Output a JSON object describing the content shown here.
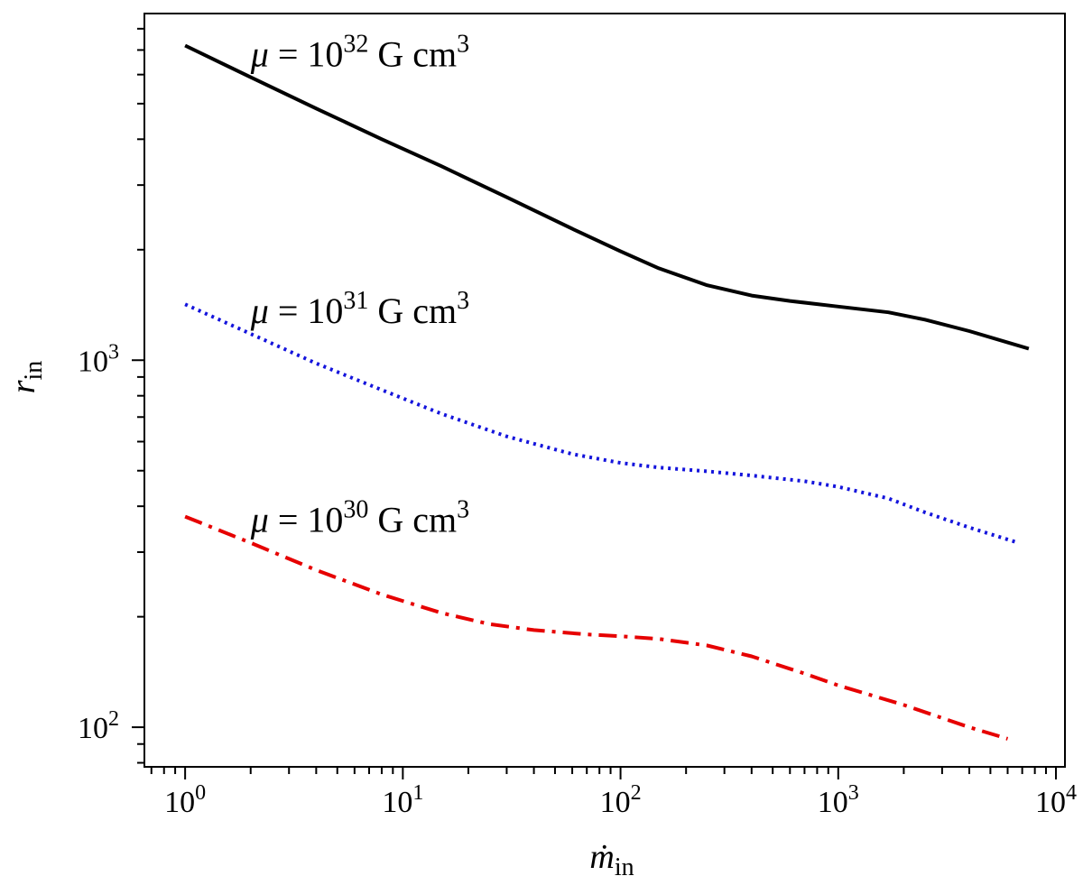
{
  "chart_data": {
    "type": "line",
    "x_scale": "log",
    "y_scale": "log",
    "xlim": [
      0.65,
      11000
    ],
    "ylim": [
      78,
      8800
    ],
    "xlabel": {
      "base": "ṁ",
      "sub": "in"
    },
    "ylabel": {
      "base": "r",
      "sub": "in"
    },
    "x_ticks": [
      {
        "value": 1,
        "base": "10",
        "exp": "0"
      },
      {
        "value": 10,
        "base": "10",
        "exp": "1"
      },
      {
        "value": 100,
        "base": "10",
        "exp": "2"
      },
      {
        "value": 1000,
        "base": "10",
        "exp": "3"
      },
      {
        "value": 10000,
        "base": "10",
        "exp": "4"
      }
    ],
    "y_ticks": [
      {
        "value": 100,
        "base": "10",
        "exp": "2"
      },
      {
        "value": 1000,
        "base": "10",
        "exp": "3"
      }
    ],
    "series": [
      {
        "name": "mu32",
        "label": {
          "prefix": "μ = 10",
          "exp": "32",
          "unit": " G cm",
          "unit_exp": "3",
          "anchor_x": 2.0
        },
        "color": "#000000",
        "style": "solid",
        "x": [
          1,
          2,
          4,
          8,
          15,
          30,
          60,
          100,
          150,
          250,
          400,
          600,
          1000,
          1700,
          2500,
          4000,
          7500
        ],
        "y": [
          7200,
          5900,
          4850,
          4000,
          3380,
          2780,
          2280,
          1980,
          1780,
          1600,
          1500,
          1450,
          1400,
          1350,
          1290,
          1200,
          1075
        ]
      },
      {
        "name": "mu31",
        "label": {
          "prefix": "μ = 10",
          "exp": "31",
          "unit": " G cm",
          "unit_exp": "3",
          "anchor_x": 2.0
        },
        "color": "#1414dc",
        "style": "dotted",
        "x": [
          1,
          2,
          4,
          8,
          15,
          30,
          60,
          100,
          150,
          250,
          400,
          700,
          1000,
          1700,
          2500,
          4000,
          6500
        ],
        "y": [
          1420,
          1180,
          980,
          830,
          715,
          620,
          555,
          525,
          510,
          498,
          485,
          468,
          452,
          420,
          385,
          350,
          320
        ]
      },
      {
        "name": "mu30",
        "label": {
          "prefix": "μ = 10",
          "exp": "30",
          "unit": " G cm",
          "unit_exp": "3",
          "anchor_x": 2.0
        },
        "color": "#e60000",
        "style": "dashdot",
        "x": [
          1,
          2,
          4,
          8,
          15,
          25,
          40,
          70,
          100,
          150,
          250,
          400,
          700,
          1000,
          2000,
          4000,
          6000
        ],
        "y": [
          375,
          318,
          268,
          230,
          205,
          191,
          184,
          179,
          177,
          174,
          167,
          156,
          140,
          130,
          115,
          100,
          93
        ]
      }
    ]
  }
}
